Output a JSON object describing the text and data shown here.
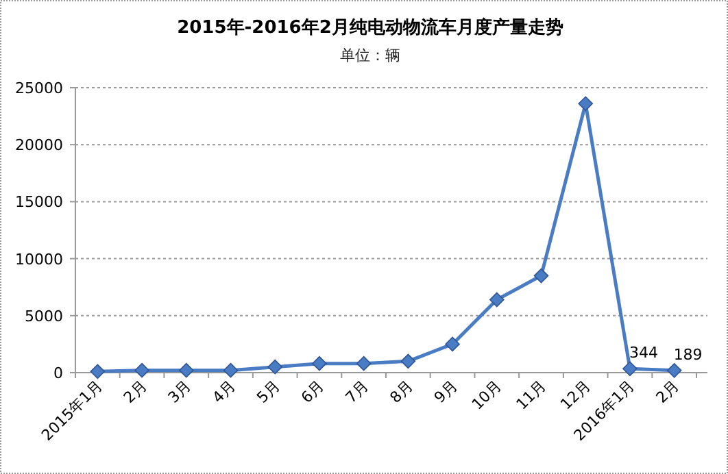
{
  "chart_data": {
    "type": "line",
    "title": "2015年-2016年2月纯电动物流车月度产量走势",
    "subtitle": "单位：辆",
    "categories": [
      "2015年1月",
      "2月",
      "3月",
      "4月",
      "5月",
      "6月",
      "7月",
      "8月",
      "9月",
      "10月",
      "11月",
      "12月",
      "2016年1月",
      "2月"
    ],
    "series": [
      {
        "color": "#4a7cc4",
        "values": [
          100,
          200,
          200,
          200,
          500,
          800,
          800,
          1000,
          2500,
          6400,
          8500,
          23600,
          344,
          189
        ],
        "value_labels": [
          null,
          null,
          null,
          null,
          null,
          null,
          null,
          null,
          null,
          null,
          null,
          null,
          "344",
          "189"
        ]
      }
    ],
    "ylim": [
      0,
      25000
    ],
    "yticks": [
      0,
      5000,
      10000,
      15000,
      20000,
      25000
    ],
    "grid": "y",
    "marker": "diamond",
    "line_style": "solid"
  }
}
